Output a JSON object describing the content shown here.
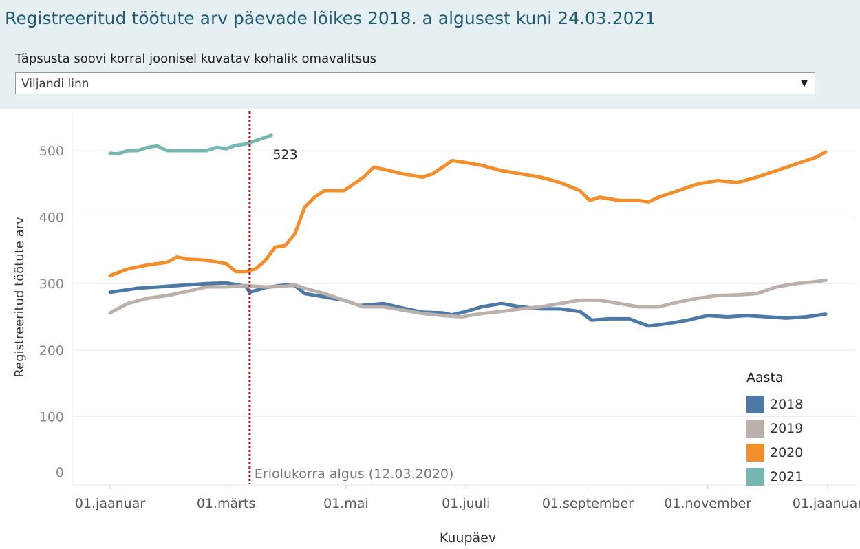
{
  "header": {
    "title": "Registreeritud töötute arv päevade lõikes 2018. a algusest kuni 24.03.2021",
    "filter_label": "Täpsusta soovi korral  joonisel kuvatav kohalik omavalitsus",
    "selected_municipality": "Viljandi linn",
    "dropdown_icon": "caret-down-icon"
  },
  "chart_data": {
    "type": "line",
    "x_type": "day-of-year",
    "x_ticks": [
      {
        "label": "01.jaanuar",
        "day": 1
      },
      {
        "label": "01.märts",
        "day": 60
      },
      {
        "label": "01.mai",
        "day": 121
      },
      {
        "label": "01.juuli",
        "day": 182
      },
      {
        "label": "01.september",
        "day": 244
      },
      {
        "label": "01.november",
        "day": 305
      },
      {
        "label": "01.jaanuar",
        "day": 366
      }
    ],
    "xlabel": "Kuupäev",
    "ylabel": "Registreeritud töötute arv",
    "ylim": [
      0,
      550
    ],
    "yticks": [
      0,
      100,
      200,
      300,
      400,
      500
    ],
    "grid": true,
    "legend_title": "Aasta",
    "legend_position": "bottom-right",
    "annotation": {
      "day": 72,
      "label": "Eriolukorra algus (12.03.2020)",
      "color": "#b3181c"
    },
    "end_label": {
      "series": "2021",
      "day": 83,
      "value": 523,
      "label": "523"
    },
    "series": [
      {
        "name": "2018",
        "color": "#4e79a7",
        "points": [
          [
            1,
            287
          ],
          [
            15,
            293
          ],
          [
            30,
            296
          ],
          [
            40,
            298
          ],
          [
            50,
            300
          ],
          [
            60,
            301
          ],
          [
            70,
            296
          ],
          [
            72,
            287
          ],
          [
            80,
            294
          ],
          [
            90,
            298
          ],
          [
            95,
            297
          ],
          [
            100,
            285
          ],
          [
            110,
            280
          ],
          [
            120,
            275
          ],
          [
            128,
            267
          ],
          [
            140,
            270
          ],
          [
            150,
            263
          ],
          [
            160,
            257
          ],
          [
            170,
            256
          ],
          [
            175,
            253
          ],
          [
            182,
            258
          ],
          [
            190,
            265
          ],
          [
            200,
            270
          ],
          [
            210,
            265
          ],
          [
            220,
            262
          ],
          [
            230,
            262
          ],
          [
            240,
            258
          ],
          [
            246,
            245
          ],
          [
            255,
            247
          ],
          [
            265,
            247
          ],
          [
            275,
            236
          ],
          [
            285,
            240
          ],
          [
            295,
            245
          ],
          [
            305,
            252
          ],
          [
            315,
            250
          ],
          [
            325,
            252
          ],
          [
            335,
            250
          ],
          [
            345,
            248
          ],
          [
            355,
            250
          ],
          [
            365,
            254
          ]
        ]
      },
      {
        "name": "2019",
        "color": "#bab0ac",
        "points": [
          [
            1,
            256
          ],
          [
            10,
            270
          ],
          [
            20,
            278
          ],
          [
            30,
            282
          ],
          [
            40,
            288
          ],
          [
            50,
            295
          ],
          [
            60,
            295
          ],
          [
            70,
            297
          ],
          [
            80,
            295
          ],
          [
            90,
            296
          ],
          [
            95,
            298
          ],
          [
            100,
            293
          ],
          [
            110,
            285
          ],
          [
            120,
            275
          ],
          [
            130,
            265
          ],
          [
            140,
            265
          ],
          [
            150,
            260
          ],
          [
            160,
            255
          ],
          [
            170,
            252
          ],
          [
            180,
            250
          ],
          [
            190,
            255
          ],
          [
            200,
            258
          ],
          [
            210,
            262
          ],
          [
            220,
            265
          ],
          [
            230,
            270
          ],
          [
            240,
            275
          ],
          [
            250,
            275
          ],
          [
            260,
            270
          ],
          [
            270,
            265
          ],
          [
            280,
            265
          ],
          [
            290,
            272
          ],
          [
            300,
            278
          ],
          [
            310,
            282
          ],
          [
            320,
            283
          ],
          [
            330,
            285
          ],
          [
            340,
            295
          ],
          [
            350,
            300
          ],
          [
            360,
            303
          ],
          [
            365,
            305
          ]
        ]
      },
      {
        "name": "2020",
        "color": "#f28e2b",
        "points": [
          [
            1,
            312
          ],
          [
            10,
            322
          ],
          [
            20,
            328
          ],
          [
            30,
            332
          ],
          [
            35,
            340
          ],
          [
            40,
            337
          ],
          [
            50,
            335
          ],
          [
            60,
            330
          ],
          [
            65,
            318
          ],
          [
            70,
            318
          ],
          [
            75,
            322
          ],
          [
            80,
            335
          ],
          [
            85,
            355
          ],
          [
            90,
            357
          ],
          [
            95,
            375
          ],
          [
            100,
            415
          ],
          [
            105,
            430
          ],
          [
            110,
            440
          ],
          [
            120,
            440
          ],
          [
            125,
            450
          ],
          [
            130,
            460
          ],
          [
            135,
            475
          ],
          [
            140,
            472
          ],
          [
            150,
            465
          ],
          [
            160,
            460
          ],
          [
            165,
            465
          ],
          [
            175,
            485
          ],
          [
            180,
            483
          ],
          [
            190,
            478
          ],
          [
            200,
            470
          ],
          [
            210,
            465
          ],
          [
            220,
            460
          ],
          [
            230,
            452
          ],
          [
            240,
            440
          ],
          [
            245,
            425
          ],
          [
            250,
            430
          ],
          [
            260,
            425
          ],
          [
            270,
            425
          ],
          [
            275,
            423
          ],
          [
            280,
            430
          ],
          [
            290,
            440
          ],
          [
            300,
            450
          ],
          [
            310,
            455
          ],
          [
            320,
            452
          ],
          [
            330,
            460
          ],
          [
            340,
            470
          ],
          [
            350,
            480
          ],
          [
            360,
            490
          ],
          [
            365,
            498
          ]
        ]
      },
      {
        "name": "2021",
        "color": "#76b7b2",
        "points": [
          [
            1,
            496
          ],
          [
            5,
            495
          ],
          [
            10,
            500
          ],
          [
            15,
            500
          ],
          [
            20,
            505
          ],
          [
            25,
            507
          ],
          [
            30,
            500
          ],
          [
            40,
            500
          ],
          [
            50,
            500
          ],
          [
            55,
            505
          ],
          [
            60,
            503
          ],
          [
            65,
            508
          ],
          [
            70,
            510
          ],
          [
            75,
            515
          ],
          [
            80,
            520
          ],
          [
            83,
            523
          ]
        ]
      }
    ]
  }
}
